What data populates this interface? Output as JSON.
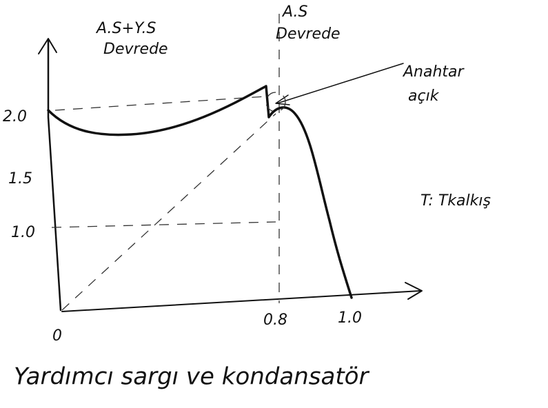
{
  "region_labels": {
    "both_windings": [
      "A.S+Y.S",
      "Devrede"
    ],
    "main_winding": [
      "A.S",
      "Devrede"
    ]
  },
  "switch_note": [
    "Anahtar",
    "açık"
  ],
  "torque_note": "T: Tkalkış",
  "y_ticks": [
    "2.0",
    "1.5",
    "1.0"
  ],
  "origin": "0",
  "x_ticks": [
    "0.8",
    "1.0"
  ],
  "caption": "Yardımcı sargı ve kondansatör"
}
